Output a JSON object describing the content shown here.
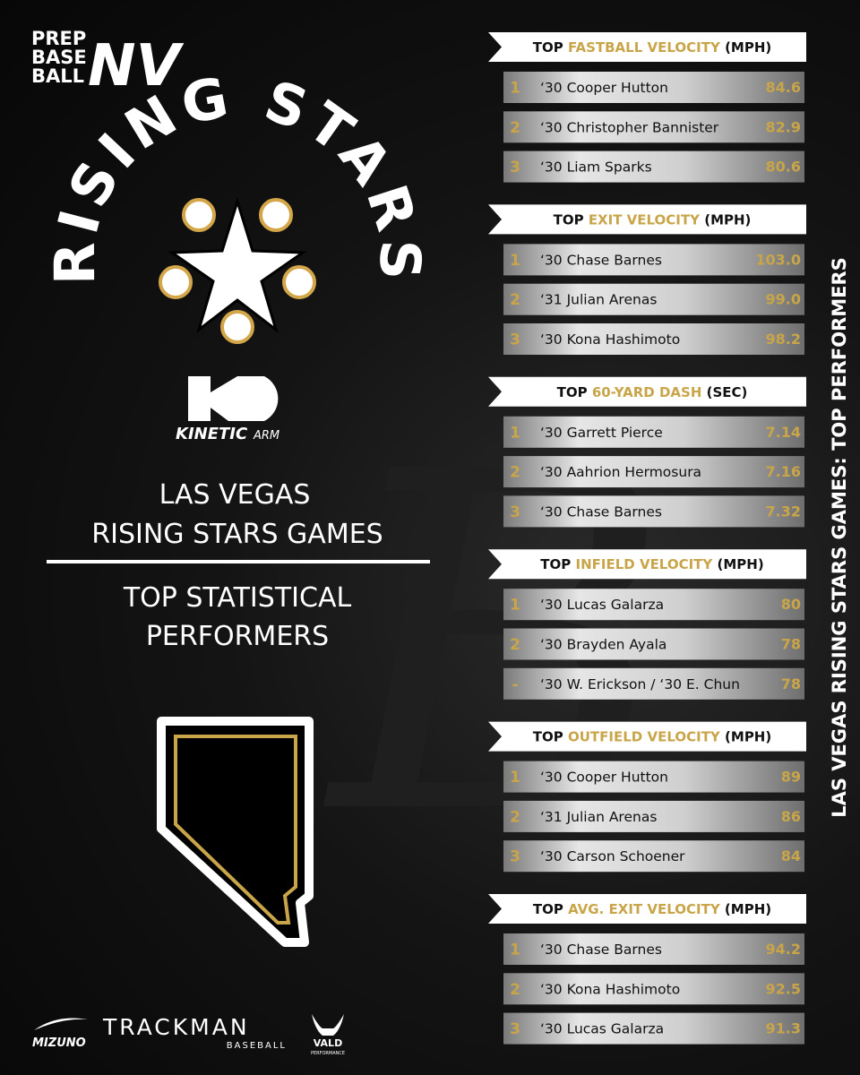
{
  "logo": {
    "line1": "PREP",
    "line2": "BASE",
    "line3": "BALL",
    "state": "NV"
  },
  "event_logo": {
    "title": "RISING STARS"
  },
  "sponsor_logo": {
    "brand": "KINETIC",
    "suffix": "ARM"
  },
  "heading": {
    "line1": "LAS VEGAS",
    "line2": "RISING STARS GAMES"
  },
  "subheading": {
    "line1": "TOP STATISTICAL",
    "line2": "PERFORMERS"
  },
  "side_title": "LAS VEGAS RISING STARS GAMES: TOP PERFORMERS",
  "sections": [
    {
      "prefix": "TOP",
      "metric": "FASTBALL VELOCITY",
      "unit": "(MPH)",
      "rows": [
        {
          "rank": "1",
          "player": "‘30 Cooper Hutton",
          "value": "84.6"
        },
        {
          "rank": "2",
          "player": "‘30 Christopher Bannister",
          "value": "82.9"
        },
        {
          "rank": "3",
          "player": "‘30 Liam Sparks",
          "value": "80.6"
        }
      ]
    },
    {
      "prefix": "TOP",
      "metric": "EXIT VELOCITY",
      "unit": "(MPH)",
      "rows": [
        {
          "rank": "1",
          "player": "‘30 Chase Barnes",
          "value": "103.0"
        },
        {
          "rank": "2",
          "player": "‘31 Julian Arenas",
          "value": "99.0"
        },
        {
          "rank": "3",
          "player": "‘30 Kona Hashimoto",
          "value": "98.2"
        }
      ]
    },
    {
      "prefix": "TOP",
      "metric": "60-YARD DASH",
      "unit": "(SEC)",
      "rows": [
        {
          "rank": "1",
          "player": "‘30 Garrett Pierce",
          "value": "7.14"
        },
        {
          "rank": "2",
          "player": "‘30 Aahrion Hermosura",
          "value": "7.16"
        },
        {
          "rank": "3",
          "player": "‘30 Chase Barnes",
          "value": "7.32"
        }
      ]
    },
    {
      "prefix": "TOP",
      "metric": "INFIELD VELOCITY",
      "unit": "(MPH)",
      "rows": [
        {
          "rank": "1",
          "player": "‘30 Lucas Galarza",
          "value": "80"
        },
        {
          "rank": "2",
          "player": "‘30 Brayden Ayala",
          "value": "78"
        },
        {
          "rank": "-",
          "player": "‘30 W. Erickson / ‘30 E. Chun",
          "value": "78"
        }
      ]
    },
    {
      "prefix": "TOP",
      "metric": "OUTFIELD VELOCITY",
      "unit": "(MPH)",
      "rows": [
        {
          "rank": "1",
          "player": "‘30 Cooper Hutton",
          "value": "89"
        },
        {
          "rank": "2",
          "player": "‘31 Julian Arenas",
          "value": "86"
        },
        {
          "rank": "3",
          "player": "‘30 Carson Schoener",
          "value": "84"
        }
      ]
    },
    {
      "prefix": "TOP",
      "metric": "AVG. EXIT VELOCITY",
      "unit": "(MPH)",
      "rows": [
        {
          "rank": "1",
          "player": "‘30 Chase Barnes",
          "value": "94.2"
        },
        {
          "rank": "2",
          "player": "‘30 Kona Hashimoto",
          "value": "92.5"
        },
        {
          "rank": "3",
          "player": "‘30 Lucas Galarza",
          "value": "91.3"
        }
      ]
    }
  ],
  "footer": {
    "mizuno": "MIZUNO",
    "trackman": "TRACKMAN",
    "trackman_sub": "BASEBALL",
    "vald": "VALD",
    "vald_sub": "PERFORMANCE"
  }
}
